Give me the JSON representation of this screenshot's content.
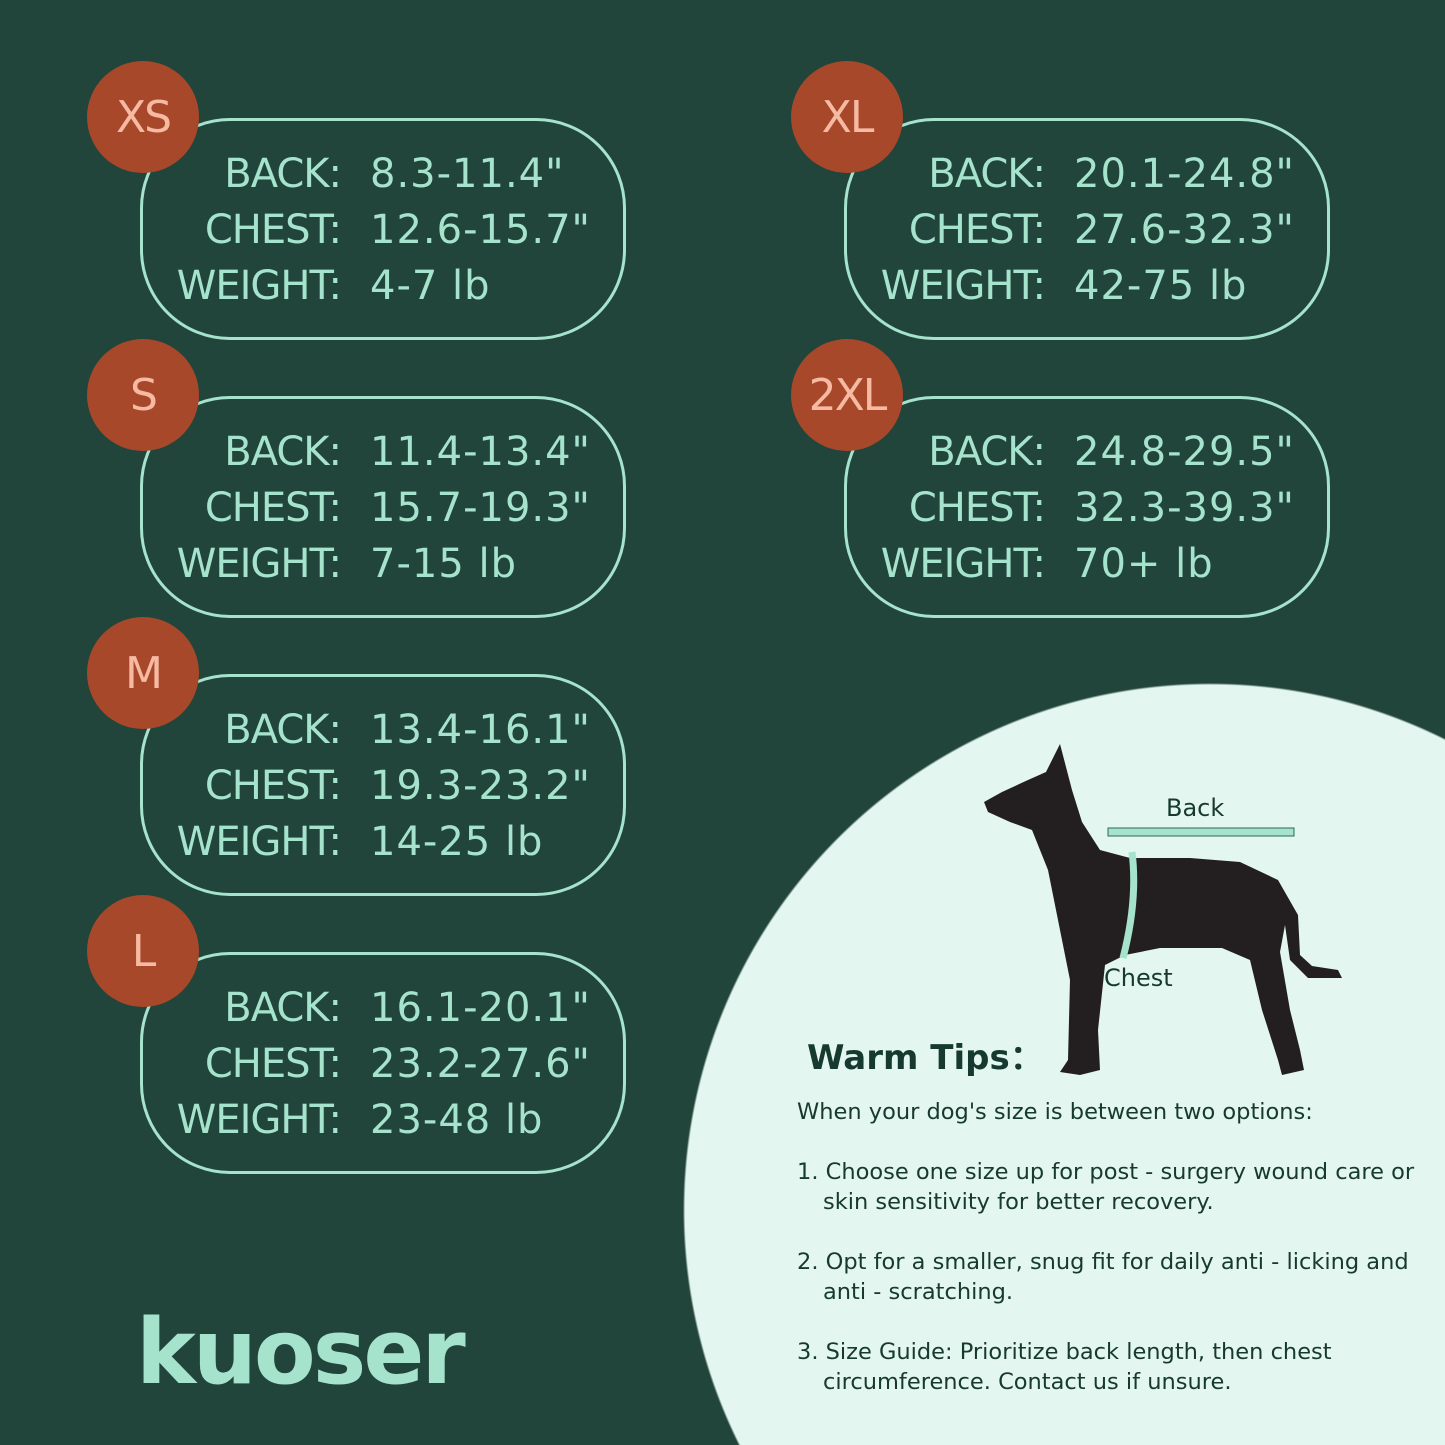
{
  "colors": {
    "background": "#21443b",
    "accent": "#a6e3cc",
    "badge": "#a8482a",
    "badge_text": "#f6b9a2",
    "tips_bg": "#e3f6ef"
  },
  "labels": {
    "back": "BACK:",
    "chest": "CHEST:",
    "weight": "WEIGHT:"
  },
  "sizes": [
    {
      "size": "XS",
      "back": "8.3-11.4\"",
      "chest": "12.6-15.7\"",
      "weight": "4-7 lb"
    },
    {
      "size": "S",
      "back": "11.4-13.4\"",
      "chest": "15.7-19.3\"",
      "weight": "7-15 lb"
    },
    {
      "size": "M",
      "back": "13.4-16.1\"",
      "chest": "19.3-23.2\"",
      "weight": "14-25 lb"
    },
    {
      "size": "L",
      "back": "16.1-20.1\"",
      "chest": "23.2-27.6\"",
      "weight": "23-48 lb"
    },
    {
      "size": "XL",
      "back": "20.1-24.8\"",
      "chest": "27.6-32.3\"",
      "weight": "42-75 lb"
    },
    {
      "size": "2XL",
      "back": "24.8-29.5\"",
      "chest": "32.3-39.3\"",
      "weight": "70+ lb"
    }
  ],
  "diagram": {
    "back_label": "Back",
    "chest_label": "Chest"
  },
  "tips": {
    "title": "Warm Tips：",
    "intro": "When your dog's size is between two options:",
    "items": [
      "1. Choose one size up for post - surgery wound care or skin sensitivity for better recovery.",
      "2. Opt for a smaller, snug fit for daily anti - licking and anti - scratching.",
      "3. Size Guide: Prioritize back length, then chest circumference. Contact us if unsure."
    ]
  },
  "logo": "kuoser"
}
